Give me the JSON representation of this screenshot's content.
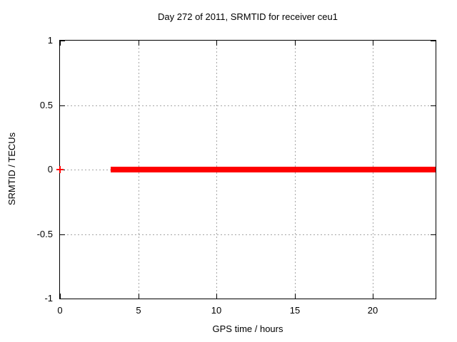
{
  "window": {
    "background": "#ffffff",
    "text_color": "#000000"
  },
  "chart_data": {
    "type": "line",
    "title": "Day 272 of 2011, SRMTID for receiver ceu1",
    "xlabel": "GPS time / hours",
    "ylabel": "SRMTID / TECUs",
    "xlim": [
      0,
      24
    ],
    "ylim": [
      -1,
      1
    ],
    "xticks": [
      0,
      5,
      10,
      15,
      20
    ],
    "yticks": [
      1,
      0.5,
      0,
      -0.5,
      -1
    ],
    "grid": true,
    "legend": "none",
    "axis_color": "#000000",
    "grid_color": "#a6a6a6",
    "series": [
      {
        "name": "SRMTID",
        "color": "#ff0000",
        "marker": "plus",
        "marker_size_px": 10,
        "line_thickness_px": 8,
        "runs": [
          {
            "type": "point",
            "x": 0,
            "y": 0
          },
          {
            "type": "segment",
            "x_start": 3.25,
            "x_end": 24,
            "y": 0
          }
        ]
      }
    ]
  }
}
